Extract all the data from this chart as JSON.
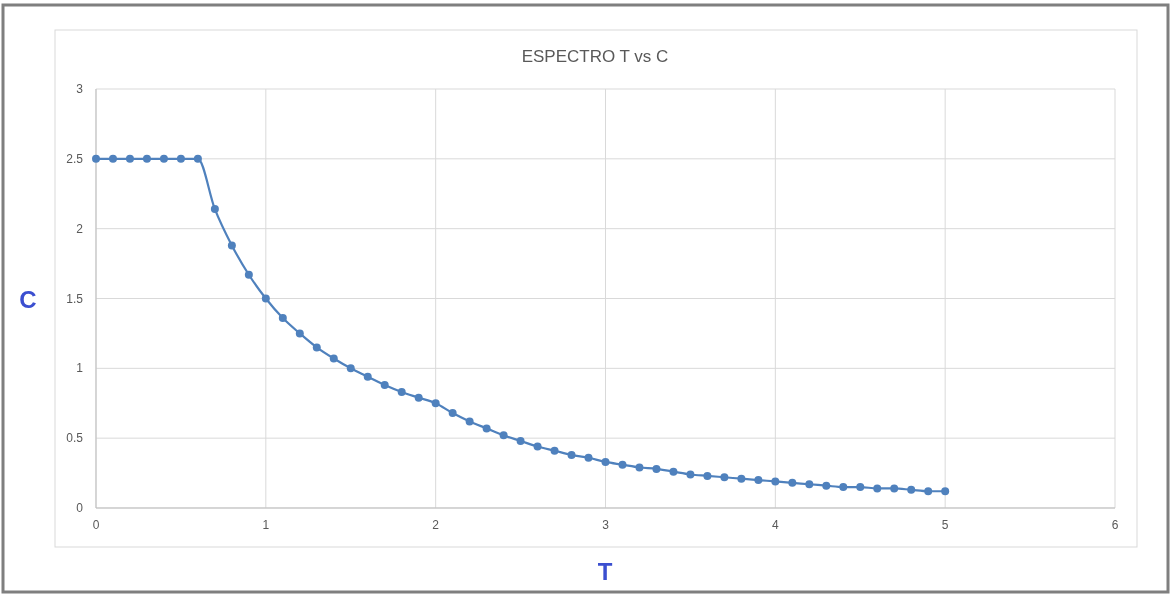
{
  "chart_data": {
    "type": "line",
    "title": "ESPECTRO T vs C",
    "xlabel": "T",
    "ylabel": "C",
    "x": [
      0,
      0.1,
      0.2,
      0.3,
      0.4,
      0.5,
      0.6,
      0.7,
      0.8,
      0.9,
      1,
      1.1,
      1.2,
      1.3,
      1.4,
      1.5,
      1.6,
      1.7,
      1.8,
      1.9,
      2,
      2.1,
      2.2,
      2.3,
      2.4,
      2.5,
      2.6,
      2.7,
      2.8,
      2.9,
      3,
      3.1,
      3.2,
      3.3,
      3.4,
      3.5,
      3.6,
      3.7,
      3.8,
      3.9,
      4,
      4.1,
      4.2,
      4.3,
      4.4,
      4.5,
      4.6,
      4.7,
      4.8,
      4.9,
      5
    ],
    "series": [
      {
        "color": "#4f81bd",
        "values": [
          2.5,
          2.5,
          2.5,
          2.5,
          2.5,
          2.5,
          2.5,
          2.14,
          1.88,
          1.67,
          1.5,
          1.36,
          1.25,
          1.15,
          1.07,
          1.0,
          0.94,
          0.88,
          0.83,
          0.79,
          0.75,
          0.68,
          0.62,
          0.57,
          0.52,
          0.48,
          0.44,
          0.41,
          0.38,
          0.36,
          0.33,
          0.31,
          0.29,
          0.28,
          0.26,
          0.24,
          0.23,
          0.22,
          0.21,
          0.2,
          0.19,
          0.18,
          0.17,
          0.16,
          0.15,
          0.15,
          0.14,
          0.14,
          0.13,
          0.12,
          0.12
        ]
      }
    ],
    "xlim": [
      0,
      6
    ],
    "xticks": [
      0,
      1,
      2,
      3,
      4,
      5,
      6
    ],
    "ylim": [
      0,
      3
    ],
    "yticks": [
      0,
      0.5,
      1,
      1.5,
      2,
      2.5,
      3
    ],
    "grid": true,
    "marker": "circle",
    "line_style": "solid"
  }
}
